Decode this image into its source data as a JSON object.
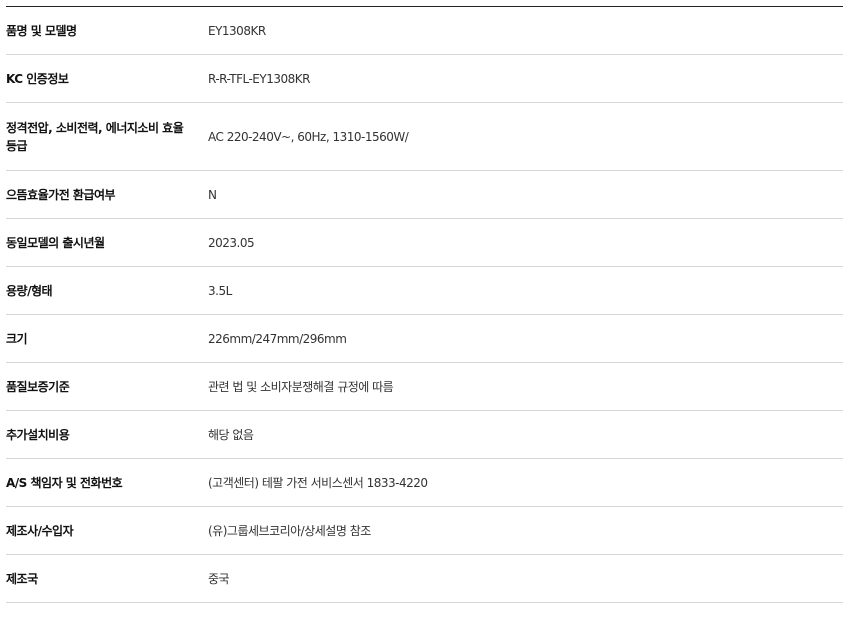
{
  "specs": [
    {
      "label": "품명 및 모델명",
      "value": "EY1308KR"
    },
    {
      "label": "KC 인증정보",
      "value": "R-R-TFL-EY1308KR"
    },
    {
      "label": "정격전압, 소비전력, 에너지소비 효율 등급",
      "value": "AC 220-240V~, 60Hz, 1310-1560W/"
    },
    {
      "label": "으뜸효율가전 환급여부",
      "value": "N"
    },
    {
      "label": "동일모델의 출시년월",
      "value": "2023.05"
    },
    {
      "label": "용량/형태",
      "value": "3.5L"
    },
    {
      "label": "크기",
      "value": "226mm/247mm/296mm"
    },
    {
      "label": "품질보증기준",
      "value": "관련 법 및 소비자분쟁해결 규정에 따름"
    },
    {
      "label": "추가설치비용",
      "value": "해당 없음"
    },
    {
      "label": "A/S 책임자 및 전화번호",
      "value": "(고객센터) 테팔 가전 서비스센서 1833-4220"
    },
    {
      "label": "제조사/수입자",
      "value": "(유)그룹세브코리아/상세설명 참조"
    },
    {
      "label": "제조국",
      "value": "중국"
    }
  ]
}
